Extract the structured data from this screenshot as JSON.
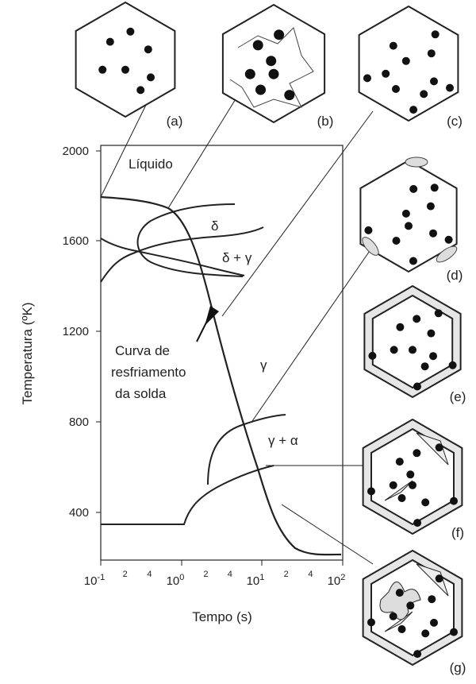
{
  "figure": {
    "y_axis_label": "Temperatura (ºK)",
    "x_axis_label": "Tempo (s)",
    "y_ticks": [
      "2000",
      "1600",
      "1200",
      "800",
      "400"
    ],
    "x_ticks": [
      {
        "base": "10",
        "exp": "-1"
      },
      {
        "base": "10",
        "exp": "0"
      },
      {
        "base": "10",
        "exp": "1"
      },
      {
        "base": "10",
        "exp": "2"
      }
    ],
    "x_minor_ticks": [
      "2",
      "4",
      "2",
      "4",
      "2",
      "4"
    ],
    "regions": {
      "liquid": "Líquido",
      "delta": "δ",
      "delta_gamma": "δ + γ",
      "gamma": "γ",
      "gamma_alpha": "γ + α"
    },
    "annotation": [
      "Curva de",
      "resfriamento",
      "da solda"
    ],
    "panels": [
      "(a)",
      "(b)",
      "(c)",
      "(d)",
      "(e)",
      "(f)",
      "(g)"
    ]
  }
}
